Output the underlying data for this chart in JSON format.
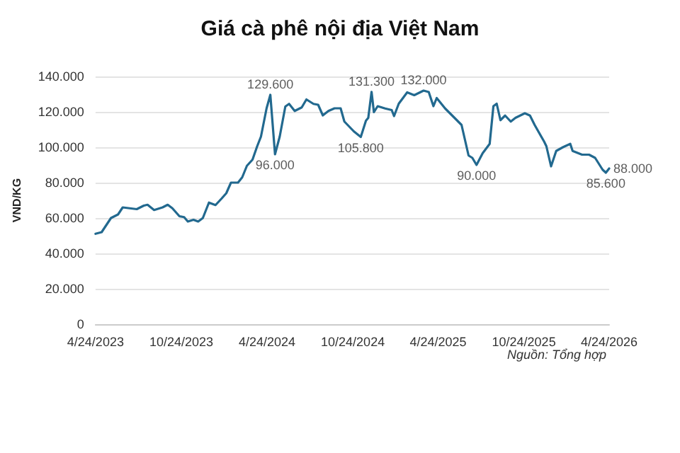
{
  "chart_data": {
    "type": "line",
    "title": "Giá cà phê nội địa Việt Nam",
    "ylabel": "VND/KG",
    "x": [
      "2023-04-24",
      "2023-05-07",
      "2023-05-27",
      "2023-06-11",
      "2023-06-21",
      "2023-07-06",
      "2023-07-21",
      "2023-08-05",
      "2023-08-13",
      "2023-08-27",
      "2023-09-14",
      "2023-09-25",
      "2023-10-05",
      "2023-10-20",
      "2023-10-30",
      "2023-11-07",
      "2023-11-19",
      "2023-11-29",
      "2023-12-09",
      "2023-12-22",
      "2024-01-05",
      "2024-01-18",
      "2024-01-28",
      "2024-02-07",
      "2024-02-22",
      "2024-03-02",
      "2024-03-12",
      "2024-03-24",
      "2024-04-03",
      "2024-04-11",
      "2024-04-23",
      "2024-05-01",
      "2024-05-11",
      "2024-05-21",
      "2024-06-02",
      "2024-06-10",
      "2024-06-22",
      "2024-07-07",
      "2024-07-17",
      "2024-08-01",
      "2024-08-11",
      "2024-08-21",
      "2024-09-02",
      "2024-09-15",
      "2024-09-28",
      "2024-10-06",
      "2024-10-26",
      "2024-11-10",
      "2024-11-21",
      "2024-11-26",
      "2024-12-03",
      "2024-12-08",
      "2024-12-16",
      "2025-01-01",
      "2025-01-15",
      "2025-01-20",
      "2025-01-30",
      "2025-02-17",
      "2025-03-04",
      "2025-03-24",
      "2025-04-04",
      "2025-04-14",
      "2025-04-21",
      "2025-05-09",
      "2025-05-29",
      "2025-06-13",
      "2025-06-28",
      "2025-07-06",
      "2025-07-15",
      "2025-07-28",
      "2025-08-12",
      "2025-08-20",
      "2025-08-27",
      "2025-09-04",
      "2025-09-14",
      "2025-09-26",
      "2025-10-06",
      "2025-10-26",
      "2025-11-06",
      "2025-11-16",
      "2025-12-06",
      "2025-12-11",
      "2025-12-21",
      "2026-01-01",
      "2026-01-16",
      "2026-01-31",
      "2026-02-05",
      "2026-02-25",
      "2026-03-12",
      "2026-03-25",
      "2026-04-10",
      "2026-04-17",
      "2026-04-24"
    ],
    "series": [
      {
        "color": "#22698f",
        "values": [
          51100,
          52000,
          60000,
          62000,
          66000,
          65500,
          65000,
          67000,
          67500,
          64500,
          66000,
          67500,
          65500,
          61000,
          60500,
          58000,
          59000,
          58000,
          60000,
          68700,
          67300,
          71000,
          74000,
          80000,
          80000,
          83000,
          89500,
          93000,
          100600,
          106000,
          122000,
          129600,
          96000,
          106000,
          123000,
          124500,
          120500,
          122500,
          127000,
          124500,
          124000,
          118000,
          120500,
          122000,
          122000,
          114500,
          109000,
          105800,
          115000,
          116600,
          131300,
          119800,
          123200,
          121900,
          121000,
          117600,
          124600,
          131000,
          129400,
          132000,
          131200,
          123200,
          127800,
          121900,
          116600,
          112600,
          95300,
          94000,
          90000,
          96600,
          101900,
          123200,
          124600,
          115300,
          117900,
          114500,
          116600,
          119200,
          117900,
          112600,
          103300,
          100600,
          89200,
          97900,
          100100,
          101900,
          97900,
          95800,
          95800,
          94000,
          87300,
          85600,
          88000
        ]
      }
    ],
    "xlim": [
      "2023-04-24",
      "2026-04-24"
    ],
    "xticks": [
      {
        "value": "2023-04-24",
        "label": "4/24/2023"
      },
      {
        "value": "2023-10-24",
        "label": "10/24/2023"
      },
      {
        "value": "2024-04-24",
        "label": "4/24/2024"
      },
      {
        "value": "2024-10-24",
        "label": "10/24/2024"
      },
      {
        "value": "2025-04-24",
        "label": "4/24/2025"
      },
      {
        "value": "2025-10-24",
        "label": "10/24/2025"
      },
      {
        "value": "2026-04-24",
        "label": "4/24/2026"
      }
    ],
    "ylim": [
      0,
      140000
    ],
    "yticks": [
      0,
      {
        "value": 20000,
        "label": "20.000"
      },
      {
        "value": 40000,
        "label": "40.000"
      },
      {
        "value": 60000,
        "label": "60.000"
      },
      {
        "value": 80000,
        "label": "80.000"
      },
      {
        "value": 100000,
        "label": "100.000"
      },
      {
        "value": 120000,
        "label": "120.000"
      },
      {
        "value": 140000,
        "label": "140.000"
      }
    ],
    "grid": "y",
    "marker": "none",
    "line_style": "solid",
    "annotations": [
      {
        "text": "129.600",
        "x": "2024-05-01",
        "y": 129600
      },
      {
        "text": "96.000",
        "x": "2024-05-11",
        "y": 96000
      },
      {
        "text": "105.800",
        "x": "2024-11-10",
        "y": 105800
      },
      {
        "text": "131.300",
        "x": "2024-12-03",
        "y": 131300
      },
      {
        "text": "132.000",
        "x": "2025-03-24",
        "y": 132000
      },
      {
        "text": "90.000",
        "x": "2025-07-15",
        "y": 90000
      },
      {
        "text": "85.600",
        "x": "2026-04-17",
        "y": 85600
      },
      {
        "text": "88.000",
        "x": "2026-04-24",
        "y": 88000
      },
      "Nguồn: Tổng hợp"
    ]
  }
}
